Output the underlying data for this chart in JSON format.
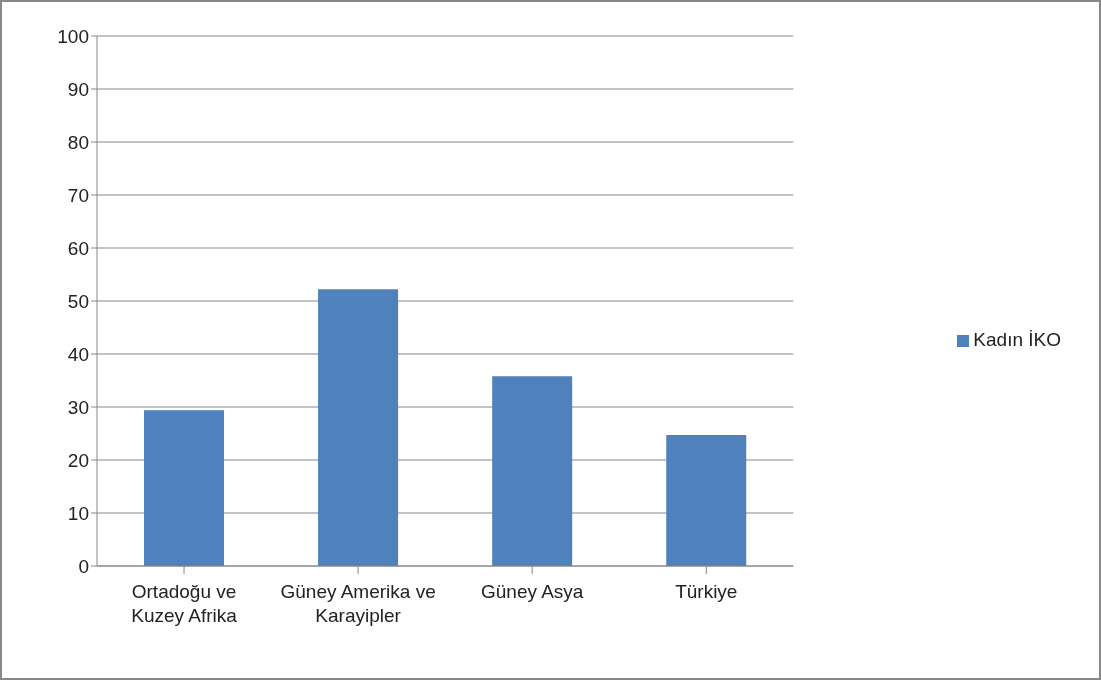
{
  "chart_data": {
    "type": "bar",
    "categories": [
      "Ortadoğu ve Kuzey Afrika",
      "Güney Amerika ve Karayipler",
      "Güney Asya",
      "Türkiye"
    ],
    "series": [
      {
        "name": "Kadın İKO",
        "color": "#4f81bd",
        "values": [
          29.4,
          52.2,
          35.8,
          24.7
        ]
      }
    ],
    "ylim": [
      0,
      100
    ],
    "yticks": [
      0,
      10,
      20,
      30,
      40,
      50,
      60,
      70,
      80,
      90,
      100
    ],
    "grid": "y",
    "legend": "right"
  }
}
